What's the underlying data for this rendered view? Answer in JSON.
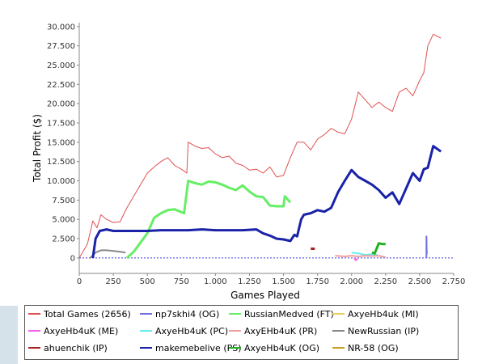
{
  "chart_data": {
    "type": "line",
    "xlabel": "Games Played",
    "ylabel": "Total Profit ($)",
    "xlim": [
      0,
      2750
    ],
    "ylim": [
      -2000,
      30500
    ],
    "x_ticks": [
      0,
      250,
      500,
      750,
      1000,
      1250,
      1500,
      1750,
      2000,
      2250,
      2500,
      2750
    ],
    "x_tick_labels": [
      "0",
      "250",
      "500",
      "750",
      "1.000",
      "1.250",
      "1.500",
      "1.750",
      "2.000",
      "2.250",
      "2.500",
      "2.750"
    ],
    "y_ticks": [
      0,
      2500,
      5000,
      7500,
      10000,
      12500,
      15000,
      17500,
      20000,
      22500,
      25000,
      27500,
      30000
    ],
    "y_tick_labels": [
      "0",
      "2.500",
      "5.000",
      "7.500",
      "10.000",
      "12.500",
      "15.000",
      "17.500",
      "20.000",
      "22.500",
      "25.000",
      "27.500",
      "30.000"
    ],
    "zero_line": true,
    "legend_position": "bottom",
    "series": [
      {
        "name": "Total Games (2656)",
        "color": "#e05050",
        "width": 1,
        "x": [
          0,
          60,
          100,
          130,
          160,
          200,
          250,
          300,
          350,
          400,
          450,
          500,
          550,
          600,
          650,
          700,
          750,
          790,
          800,
          850,
          900,
          950,
          1000,
          1050,
          1100,
          1150,
          1200,
          1250,
          1300,
          1350,
          1400,
          1450,
          1500,
          1550,
          1600,
          1650,
          1700,
          1750,
          1800,
          1850,
          1900,
          1950,
          2000,
          2050,
          2100,
          2150,
          2200,
          2250,
          2300,
          2350,
          2400,
          2450,
          2500,
          2530,
          2560,
          2600,
          2656
        ],
        "y": [
          0,
          1800,
          4800,
          3900,
          5600,
          5000,
          4600,
          4700,
          6500,
          8000,
          9500,
          11000,
          11800,
          12500,
          13000,
          12000,
          11500,
          11000,
          15000,
          14500,
          14200,
          14300,
          13500,
          13000,
          13200,
          12300,
          12000,
          11400,
          11500,
          11000,
          11800,
          10500,
          10700,
          13000,
          15000,
          15000,
          14000,
          15400,
          16000,
          16800,
          16300,
          16100,
          18000,
          21500,
          20500,
          19500,
          20200,
          19500,
          19000,
          21500,
          22000,
          21000,
          23000,
          24000,
          27500,
          29000,
          28500
        ]
      },
      {
        "name": "np7skhi4 (OG)",
        "color": "#7070e0",
        "width": 2,
        "x": [
          2550,
          2550,
          2552
        ],
        "y": [
          0,
          2800,
          500
        ]
      },
      {
        "name": "RussianMedved (FT)",
        "color": "#66ee66",
        "width": 3,
        "x": [
          350,
          400,
          450,
          500,
          550,
          600,
          650,
          700,
          770,
          800,
          850,
          900,
          950,
          1000,
          1050,
          1100,
          1150,
          1200,
          1250,
          1300,
          1350,
          1400,
          1450,
          1500,
          1510,
          1550
        ],
        "y": [
          0,
          800,
          2000,
          3200,
          5200,
          5800,
          6200,
          6300,
          5800,
          10000,
          9700,
          9500,
          9900,
          9800,
          9500,
          9100,
          8800,
          9400,
          8600,
          8000,
          7900,
          6800,
          6700,
          6700,
          8000,
          7200
        ]
      },
      {
        "name": "AxyeHb4uk (MI)",
        "color": "#e8d060",
        "width": 2,
        "x": [],
        "y": []
      },
      {
        "name": "AxyeHb4uK (ME)",
        "color": "#ee66ee",
        "width": 2,
        "x": [
          2020,
          2030,
          2045
        ],
        "y": [
          0,
          -300,
          -100
        ]
      },
      {
        "name": "AxyeHb4uK (PC)",
        "color": "#66eeee",
        "width": 2,
        "x": [
          2000,
          2050,
          2100,
          2150,
          2190
        ],
        "y": [
          700,
          600,
          400,
          500,
          400
        ]
      },
      {
        "name": "AxyEHb4uK (PR)",
        "color": "#f0a0a0",
        "width": 2,
        "x": [
          1880,
          1950,
          2000,
          2050,
          2100,
          2150,
          2200,
          2250
        ],
        "y": [
          300,
          200,
          300,
          200,
          300,
          250,
          300,
          100
        ]
      },
      {
        "name": "NewRussian (IP)",
        "color": "#888888",
        "width": 2,
        "x": [
          80,
          120,
          160,
          200,
          250,
          300,
          340
        ],
        "y": [
          0,
          700,
          1000,
          1000,
          900,
          800,
          700
        ]
      },
      {
        "name": "ahuenchik (IP)",
        "color": "#aa2222",
        "width": 3,
        "x": [
          1700,
          1730
        ],
        "y": [
          1200,
          1200
        ]
      },
      {
        "name": "makemebelive (PS)",
        "color": "#1a22a8",
        "width": 3,
        "x": [
          100,
          120,
          150,
          200,
          250,
          300,
          350,
          400,
          450,
          500,
          600,
          700,
          800,
          900,
          1000,
          1100,
          1200,
          1300,
          1350,
          1400,
          1450,
          1500,
          1550,
          1580,
          1600,
          1630,
          1650,
          1700,
          1750,
          1800,
          1850,
          1900,
          1950,
          2000,
          2050,
          2100,
          2150,
          2200,
          2250,
          2300,
          2350,
          2400,
          2450,
          2500,
          2530,
          2560,
          2600,
          2656
        ],
        "y": [
          0,
          2500,
          3500,
          3700,
          3500,
          3500,
          3500,
          3500,
          3500,
          3500,
          3600,
          3600,
          3600,
          3700,
          3600,
          3600,
          3600,
          3700,
          3200,
          2900,
          2500,
          2400,
          2200,
          3000,
          2800,
          5000,
          5600,
          5800,
          6200,
          6000,
          6500,
          8500,
          10000,
          11400,
          10500,
          10000,
          9500,
          8800,
          7800,
          8500,
          7000,
          9000,
          11000,
          10000,
          11500,
          11700,
          14500,
          13800
        ]
      },
      {
        "name": "AxyeHb4uK (OG)",
        "color": "#20b020",
        "width": 3,
        "x": [
          2150,
          2170,
          2200,
          2230,
          2250
        ],
        "y": [
          700,
          600,
          1900,
          1800,
          1800
        ]
      },
      {
        "name": "NR-58 (OG)",
        "color": "#c8a020",
        "width": 2,
        "x": [],
        "y": []
      }
    ]
  }
}
